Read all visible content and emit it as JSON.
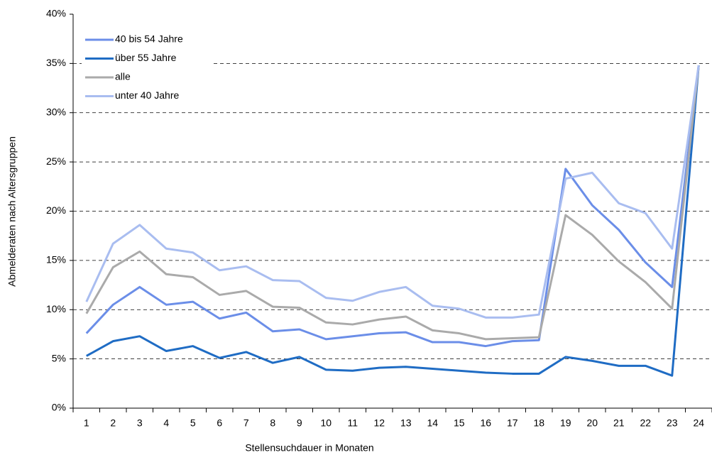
{
  "chart_data": {
    "type": "line",
    "x_label": "Stellensuchdauer in Monaten",
    "y_label": "Abmelderaten nach Altersgruppen",
    "categories": [
      "1",
      "2",
      "3",
      "4",
      "5",
      "6",
      "7",
      "8",
      "9",
      "10",
      "11",
      "12",
      "13",
      "14",
      "15",
      "16",
      "17",
      "18",
      "19",
      "20",
      "21",
      "22",
      "23",
      "24"
    ],
    "series": [
      {
        "name": "40 bis 54 Jahre",
        "color": "#6b8ee8",
        "values": [
          7.6,
          10.5,
          12.3,
          10.5,
          10.8,
          9.1,
          9.7,
          7.8,
          8.0,
          7.0,
          7.3,
          7.6,
          7.7,
          6.7,
          6.7,
          6.3,
          6.8,
          6.9,
          24.3,
          20.6,
          18.1,
          14.8,
          12.3,
          34.8
        ]
      },
      {
        "name": "über 55 Jahre",
        "color": "#1f6cc4",
        "values": [
          5.3,
          6.8,
          7.3,
          5.8,
          6.3,
          5.1,
          5.7,
          4.6,
          5.2,
          3.9,
          3.8,
          4.1,
          4.2,
          4.0,
          3.8,
          3.6,
          3.5,
          3.5,
          5.2,
          4.8,
          4.3,
          4.3,
          3.3,
          34.8
        ]
      },
      {
        "name": "alle",
        "color": "#aaaaaa",
        "values": [
          9.6,
          14.3,
          15.9,
          13.6,
          13.3,
          11.5,
          11.9,
          10.3,
          10.2,
          8.7,
          8.5,
          9.0,
          9.3,
          7.9,
          7.6,
          7.0,
          7.1,
          7.2,
          19.6,
          17.6,
          14.9,
          12.8,
          10.1,
          34.8
        ]
      },
      {
        "name": "unter 40 Jahre",
        "color": "#a9bdf0",
        "values": [
          10.8,
          16.7,
          18.6,
          16.2,
          15.8,
          14.0,
          14.4,
          13.0,
          12.9,
          11.2,
          10.9,
          11.8,
          12.3,
          10.4,
          10.1,
          9.2,
          9.2,
          9.5,
          23.3,
          23.9,
          20.8,
          19.8,
          16.2,
          34.8
        ]
      }
    ],
    "ylim": [
      0,
      40
    ],
    "yticks": [
      {
        "value": 0,
        "label": "0%"
      },
      {
        "value": 5,
        "label": "5%"
      },
      {
        "value": 10,
        "label": "10%"
      },
      {
        "value": 15,
        "label": "15%"
      },
      {
        "value": 20,
        "label": "20%"
      },
      {
        "value": 25,
        "label": "25%"
      },
      {
        "value": 30,
        "label": "30%"
      },
      {
        "value": 35,
        "label": "35%"
      },
      {
        "value": 40,
        "label": "40%"
      }
    ],
    "grid": true,
    "legend": "upper-left"
  }
}
